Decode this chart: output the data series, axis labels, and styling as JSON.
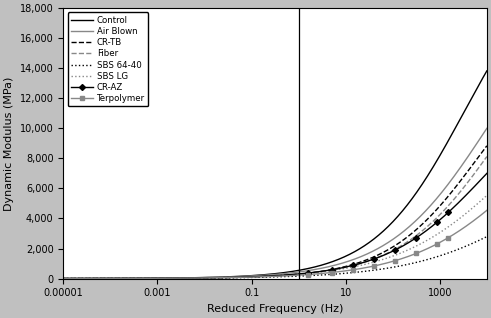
{
  "xlabel": "Reduced Frequency (Hz)",
  "ylabel": "Dynamic Modulus (MPa)",
  "ylim": [
    0,
    18000
  ],
  "yticks": [
    0,
    2000,
    4000,
    6000,
    8000,
    10000,
    12000,
    14000,
    16000,
    18000
  ],
  "xlim": [
    1e-05,
    10000.0
  ],
  "vline_x": 1.0,
  "bg_color": "#c0c0c0",
  "series": [
    {
      "label": "Control",
      "color": "#000000",
      "linestyle": "-",
      "marker": null,
      "max_val": 22000,
      "inflection": 3.5,
      "steepness": 1.05
    },
    {
      "label": "Air Blown",
      "color": "#888888",
      "linestyle": "-",
      "marker": null,
      "max_val": 20000,
      "inflection": 4.0,
      "steepness": 0.95
    },
    {
      "label": "CR-TB",
      "color": "#000000",
      "linestyle": "--",
      "marker": null,
      "max_val": 16000,
      "inflection": 3.8,
      "steepness": 1.05
    },
    {
      "label": "Fiber",
      "color": "#888888",
      "linestyle": "--",
      "marker": null,
      "max_val": 18000,
      "inflection": 4.2,
      "steepness": 0.98
    },
    {
      "label": "SBS 64-40",
      "color": "#000000",
      "linestyle": ":",
      "marker": null,
      "max_val": 9000,
      "inflection": 5.0,
      "steepness": 0.8
    },
    {
      "label": "SBS LG",
      "color": "#888888",
      "linestyle": ":",
      "marker": null,
      "max_val": 14000,
      "inflection": 4.5,
      "steepness": 0.85
    },
    {
      "label": "CR-AZ",
      "color": "#000000",
      "linestyle": "-",
      "marker": "D",
      "max_val": 14000,
      "inflection": 4.0,
      "steepness": 0.95
    },
    {
      "label": "Terpolymer",
      "color": "#888888",
      "linestyle": "-",
      "marker": "s",
      "max_val": 13500,
      "inflection": 4.8,
      "steepness": 0.85
    }
  ],
  "marker_log_fr": [
    0.2,
    0.7,
    1.15,
    1.6,
    2.05,
    2.5,
    2.95,
    3.18
  ]
}
